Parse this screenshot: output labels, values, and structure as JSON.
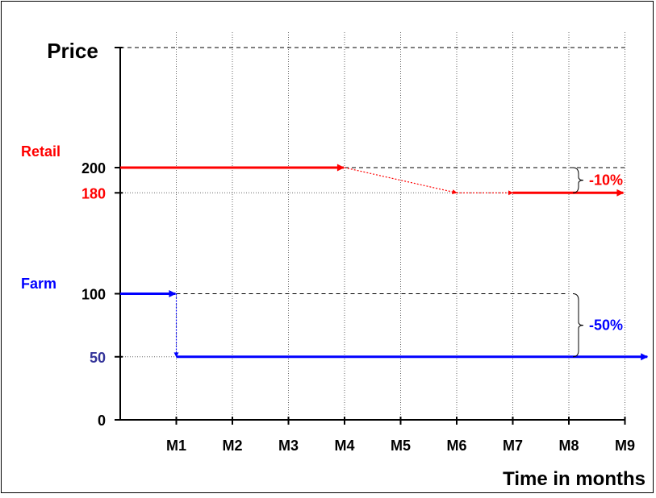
{
  "chart_data": {
    "type": "line",
    "ylabel": "Price",
    "xlabel": "Time in months",
    "categories": [
      "M1",
      "M2",
      "M3",
      "M4",
      "M5",
      "M6",
      "M7",
      "M8",
      "M9"
    ],
    "ylim": [
      0,
      280
    ],
    "y_ticks": [
      "0",
      "50",
      "100",
      "180",
      "200"
    ],
    "grid": "dotted vertical lines at each month; dashed horizontal reference lines",
    "series": [
      {
        "name": "Retail",
        "color": "#ff0000",
        "points": [
          {
            "x": 0,
            "y": 200
          },
          {
            "x": 4,
            "y": 200
          },
          {
            "x": 6,
            "y": 180
          },
          {
            "x": 7,
            "y": 180
          },
          {
            "x": 9,
            "y": 180
          }
        ]
      },
      {
        "name": "Farm",
        "color": "#0000ff",
        "points": [
          {
            "x": 0,
            "y": 100
          },
          {
            "x": 1,
            "y": 100
          },
          {
            "x": 1,
            "y": 50
          },
          {
            "x": 9.4,
            "y": 50
          }
        ]
      }
    ],
    "annotations": [
      {
        "text": "-10%",
        "color": "#ff0000",
        "from": 200,
        "to": 180,
        "x": 8
      },
      {
        "text": "-50%",
        "color": "#0000ff",
        "from": 100,
        "to": 50,
        "x": 8
      }
    ],
    "colors": {
      "retail": "#ff0000",
      "farm": "#0000ff",
      "farm_tick": "#333399",
      "axis": "#000000"
    }
  }
}
